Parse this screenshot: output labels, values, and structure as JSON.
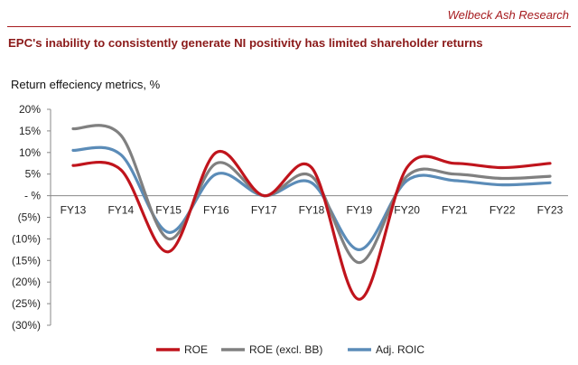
{
  "header": {
    "brand": "Welbeck Ash Research",
    "headline": "EPC's inability to consistently generate NI positivity has limited shareholder returns",
    "subtitle": "Return effeciency metrics, %"
  },
  "colors": {
    "brand": "#a61b1f",
    "roe": "#c0141c",
    "roe_excl_bb": "#808080",
    "adj_roic": "#5b8cb8"
  },
  "chart_data": {
    "type": "line",
    "smooth": true,
    "title": "",
    "xlabel": "",
    "ylabel": "",
    "categories": [
      "FY13",
      "FY14",
      "FY15",
      "FY16",
      "FY17",
      "FY18",
      "FY19",
      "FY20",
      "FY21",
      "FY22",
      "FY23"
    ],
    "ylim": [
      -30,
      20
    ],
    "yticks": [
      20,
      15,
      10,
      5,
      0,
      -5,
      -10,
      -15,
      -20,
      -25,
      -30
    ],
    "ytick_labels": [
      "20%",
      "15%",
      "10%",
      "5%",
      "- %",
      "(5%)",
      "(10%)",
      "(15%)",
      "(20%)",
      "(25%)",
      "(30%)"
    ],
    "grid": false,
    "legend_position": "bottom",
    "series": [
      {
        "name": "ROE",
        "color": "#c0141c",
        "values": [
          7,
          6,
          -13,
          10,
          0,
          6.5,
          -24,
          6.5,
          7.5,
          6.5,
          7.5
        ]
      },
      {
        "name": "ROE (excl. BB)",
        "color": "#808080",
        "values": [
          15.5,
          14,
          -10,
          7.5,
          0,
          4.5,
          -15.5,
          4.5,
          5,
          4,
          4.5
        ]
      },
      {
        "name": "Adj. ROIC",
        "color": "#5b8cb8",
        "values": [
          10.5,
          9.5,
          -8.5,
          5,
          0,
          3,
          -12.5,
          3.5,
          3.5,
          2.5,
          3
        ]
      }
    ]
  }
}
